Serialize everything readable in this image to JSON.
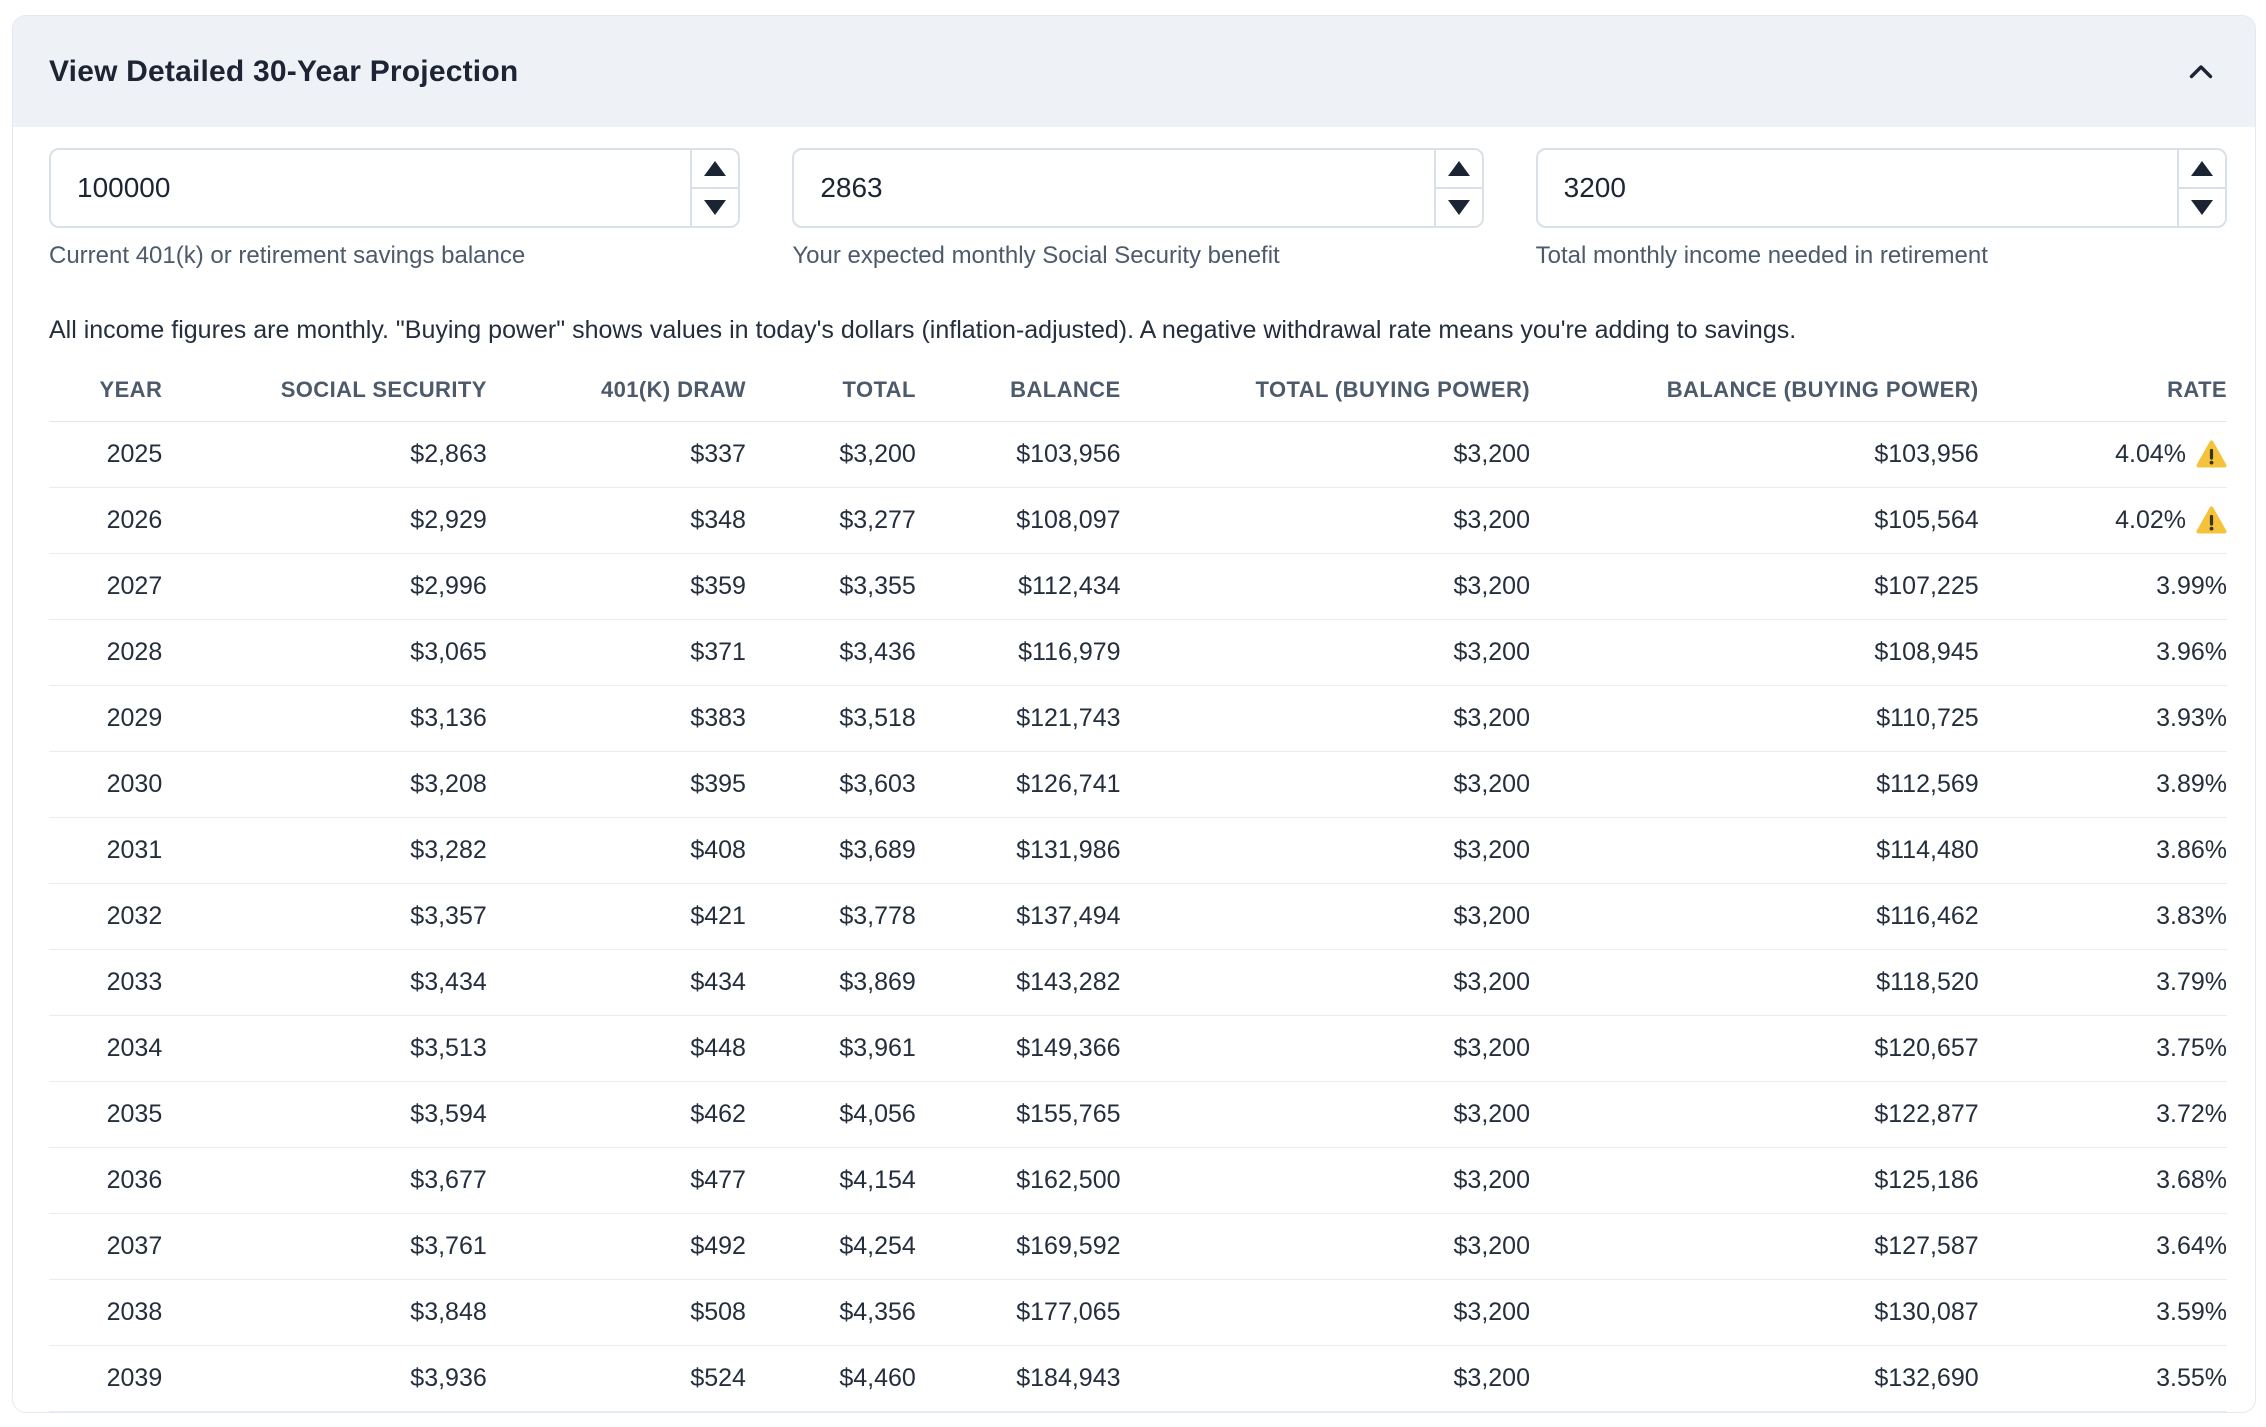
{
  "panel": {
    "title": "View Detailed 30-Year Projection",
    "collapse_icon": "chevron-up-icon"
  },
  "inputs": [
    {
      "value": "100000",
      "label": "Current 401(k) or retirement savings balance"
    },
    {
      "value": "2863",
      "label": "Your expected monthly Social Security benefit"
    },
    {
      "value": "3200",
      "label": "Total monthly income needed in retirement"
    }
  ],
  "note": "All income figures are monthly. \"Buying power\" shows values in today's dollars (inflation-adjusted). A negative withdrawal rate means you're adding to savings.",
  "table": {
    "columns": [
      "YEAR",
      "SOCIAL SECURITY",
      "401(K) DRAW",
      "TOTAL",
      "BALANCE",
      "TOTAL (BUYING POWER)",
      "BALANCE (BUYING POWER)",
      "RATE"
    ],
    "row_keys": [
      "year",
      "social_security",
      "draw_401k",
      "total",
      "balance",
      "total_buying_power",
      "balance_buying_power",
      "rate"
    ],
    "rows": [
      {
        "year": "2025",
        "social_security": "$2,863",
        "draw_401k": "$337",
        "total": "$3,200",
        "balance": "$103,956",
        "total_buying_power": "$3,200",
        "balance_buying_power": "$103,956",
        "rate": "4.04%",
        "warning": true
      },
      {
        "year": "2026",
        "social_security": "$2,929",
        "draw_401k": "$348",
        "total": "$3,277",
        "balance": "$108,097",
        "total_buying_power": "$3,200",
        "balance_buying_power": "$105,564",
        "rate": "4.02%",
        "warning": true
      },
      {
        "year": "2027",
        "social_security": "$2,996",
        "draw_401k": "$359",
        "total": "$3,355",
        "balance": "$112,434",
        "total_buying_power": "$3,200",
        "balance_buying_power": "$107,225",
        "rate": "3.99%",
        "warning": false
      },
      {
        "year": "2028",
        "social_security": "$3,065",
        "draw_401k": "$371",
        "total": "$3,436",
        "balance": "$116,979",
        "total_buying_power": "$3,200",
        "balance_buying_power": "$108,945",
        "rate": "3.96%",
        "warning": false
      },
      {
        "year": "2029",
        "social_security": "$3,136",
        "draw_401k": "$383",
        "total": "$3,518",
        "balance": "$121,743",
        "total_buying_power": "$3,200",
        "balance_buying_power": "$110,725",
        "rate": "3.93%",
        "warning": false
      },
      {
        "year": "2030",
        "social_security": "$3,208",
        "draw_401k": "$395",
        "total": "$3,603",
        "balance": "$126,741",
        "total_buying_power": "$3,200",
        "balance_buying_power": "$112,569",
        "rate": "3.89%",
        "warning": false
      },
      {
        "year": "2031",
        "social_security": "$3,282",
        "draw_401k": "$408",
        "total": "$3,689",
        "balance": "$131,986",
        "total_buying_power": "$3,200",
        "balance_buying_power": "$114,480",
        "rate": "3.86%",
        "warning": false
      },
      {
        "year": "2032",
        "social_security": "$3,357",
        "draw_401k": "$421",
        "total": "$3,778",
        "balance": "$137,494",
        "total_buying_power": "$3,200",
        "balance_buying_power": "$116,462",
        "rate": "3.83%",
        "warning": false
      },
      {
        "year": "2033",
        "social_security": "$3,434",
        "draw_401k": "$434",
        "total": "$3,869",
        "balance": "$143,282",
        "total_buying_power": "$3,200",
        "balance_buying_power": "$118,520",
        "rate": "3.79%",
        "warning": false
      },
      {
        "year": "2034",
        "social_security": "$3,513",
        "draw_401k": "$448",
        "total": "$3,961",
        "balance": "$149,366",
        "total_buying_power": "$3,200",
        "balance_buying_power": "$120,657",
        "rate": "3.75%",
        "warning": false
      },
      {
        "year": "2035",
        "social_security": "$3,594",
        "draw_401k": "$462",
        "total": "$4,056",
        "balance": "$155,765",
        "total_buying_power": "$3,200",
        "balance_buying_power": "$122,877",
        "rate": "3.72%",
        "warning": false
      },
      {
        "year": "2036",
        "social_security": "$3,677",
        "draw_401k": "$477",
        "total": "$4,154",
        "balance": "$162,500",
        "total_buying_power": "$3,200",
        "balance_buying_power": "$125,186",
        "rate": "3.68%",
        "warning": false
      },
      {
        "year": "2037",
        "social_security": "$3,761",
        "draw_401k": "$492",
        "total": "$4,254",
        "balance": "$169,592",
        "total_buying_power": "$3,200",
        "balance_buying_power": "$127,587",
        "rate": "3.64%",
        "warning": false
      },
      {
        "year": "2038",
        "social_security": "$3,848",
        "draw_401k": "$508",
        "total": "$4,356",
        "balance": "$177,065",
        "total_buying_power": "$3,200",
        "balance_buying_power": "$130,087",
        "rate": "3.59%",
        "warning": false
      },
      {
        "year": "2039",
        "social_security": "$3,936",
        "draw_401k": "$524",
        "total": "$4,460",
        "balance": "$184,943",
        "total_buying_power": "$3,200",
        "balance_buying_power": "$132,690",
        "rate": "3.55%",
        "warning": false
      }
    ]
  },
  "colors": {
    "header_bg": "#eef1f6",
    "title": "#1d2534",
    "text": "#242e3d",
    "muted": "#4c5a6b",
    "warning": "#f5c33b",
    "warning_glyph": "#3a3209"
  }
}
